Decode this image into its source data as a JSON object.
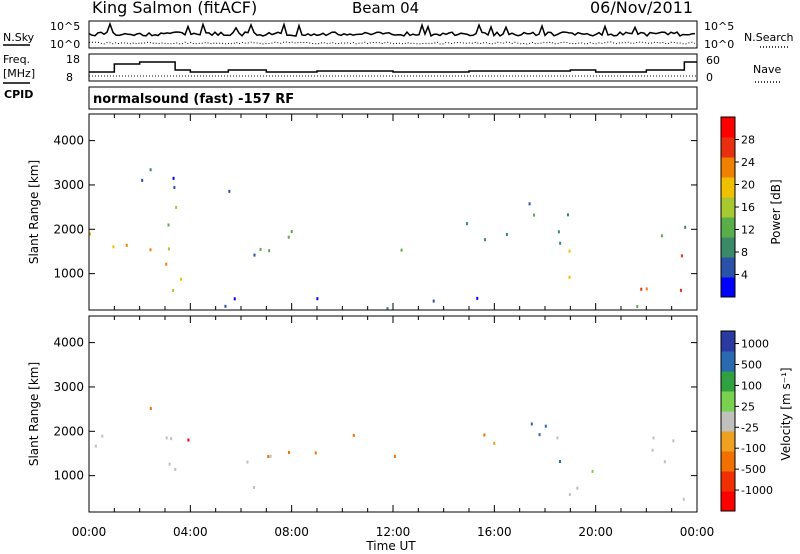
{
  "header": {
    "station": "King Salmon (fitACF)",
    "beam": "Beam 04",
    "date": "06/Nov/2011"
  },
  "noise_panel": {
    "left_label": "N.Sky",
    "right_label": "N.Search",
    "left_ticks": [
      "10^5",
      "10^0"
    ],
    "right_ticks": [
      "10^5",
      "10^0"
    ]
  },
  "freq_panel": {
    "left_label_line1": "Freq.",
    "left_label_line2": "[MHz]",
    "right_label": "Nave",
    "left_ticks": [
      "18",
      "8"
    ],
    "right_ticks": [
      "60",
      "0"
    ],
    "cpid_label": "CPID"
  },
  "cpid_text": "normalsound (fast) -157 RF",
  "colors": {
    "power_scale": [
      "#0000ff",
      "#2a52a8",
      "#3a8a6a",
      "#5aae4a",
      "#a8c830",
      "#f0c000",
      "#f08000",
      "#e83010",
      "#ff0000"
    ],
    "velocity_scale": [
      "#2a3aa0",
      "#2a6ab0",
      "#30a040",
      "#7ad050",
      "#c0c0bc",
      "#f0a020",
      "#f07000",
      "#f03000",
      "#ff0000"
    ]
  },
  "chart_data": [
    {
      "type": "heatmap",
      "title": "",
      "xlabel": "Time UT",
      "ylabel": "Slant Range [km]",
      "x_ticks": [
        "00:00",
        "04:00",
        "08:00",
        "12:00",
        "16:00",
        "20:00",
        "00:00"
      ],
      "xlim_hours": [
        0,
        24
      ],
      "ylim": [
        180,
        4600
      ],
      "y_ticks": [
        1000,
        2000,
        3000,
        4000
      ],
      "colorbar": {
        "label": "Power [dB]",
        "ticks": [
          4,
          8,
          12,
          16,
          20,
          24,
          28
        ],
        "range": [
          0,
          32
        ]
      },
      "echo_regions": [
        {
          "t0": 0.0,
          "t1": 4.4,
          "r0": 500,
          "r1": 2000,
          "level": 20
        },
        {
          "t0": 1.0,
          "t1": 3.6,
          "r0": 2000,
          "r1": 2700,
          "level": 14
        },
        {
          "t0": 4.5,
          "t1": 10.5,
          "r0": 1300,
          "r1": 2000,
          "level": 8
        },
        {
          "t0": 3.2,
          "t1": 4.6,
          "r0": 500,
          "r1": 900,
          "level": 14
        },
        {
          "t0": 0.5,
          "t1": 6.0,
          "r0": 2800,
          "r1": 3600,
          "level": 6
        },
        {
          "t0": 11.7,
          "t1": 13.5,
          "r0": 1200,
          "r1": 1800,
          "level": 10
        },
        {
          "t0": 14.3,
          "t1": 16.8,
          "r0": 1300,
          "r1": 2200,
          "level": 8
        },
        {
          "t0": 16.8,
          "t1": 19.0,
          "r0": 1800,
          "r1": 3100,
          "level": 8
        },
        {
          "t0": 18.5,
          "t1": 24.0,
          "r0": 500,
          "r1": 1500,
          "level": 22
        },
        {
          "t0": 18.5,
          "t1": 24.0,
          "r0": 1500,
          "r1": 2200,
          "level": 12
        },
        {
          "t0": 0.0,
          "t1": 24.0,
          "r0": 200,
          "r1": 450,
          "level": 6
        }
      ]
    },
    {
      "type": "heatmap",
      "title": "",
      "xlabel": "Time UT",
      "ylabel": "Slant Range [km]",
      "x_ticks": [
        "00:00",
        "04:00",
        "08:00",
        "12:00",
        "16:00",
        "20:00",
        "00:00"
      ],
      "xlim_hours": [
        0,
        24
      ],
      "ylim": [
        180,
        4600
      ],
      "y_ticks": [
        1000,
        2000,
        3000,
        4000
      ],
      "colorbar": {
        "label": "Velocity [m s⁻¹]",
        "ticks": [
          "1000",
          "500",
          "100",
          "25",
          "-25",
          "-100",
          "-500",
          "-1000"
        ]
      },
      "echo_regions": [
        {
          "t0": 0.0,
          "t1": 4.4,
          "r0": 500,
          "r1": 2000,
          "velocity": "ground scatter (gray)"
        },
        {
          "t0": 2.0,
          "t1": 3.7,
          "r0": 2300,
          "r1": 2800,
          "velocity": -300
        },
        {
          "t0": 4.5,
          "t1": 10.5,
          "r0": 1300,
          "r1": 1900,
          "velocity": -200
        },
        {
          "t0": 4.6,
          "t1": 7.5,
          "r0": 600,
          "r1": 1500,
          "velocity": "ground scatter (gray)"
        },
        {
          "t0": 11.7,
          "t1": 13.5,
          "r0": 1200,
          "r1": 1700,
          "velocity": -150
        },
        {
          "t0": 14.3,
          "t1": 16.8,
          "r0": 1300,
          "r1": 2100,
          "velocity": -120
        },
        {
          "t0": 16.8,
          "t1": 19.0,
          "r0": 1800,
          "r1": 3300,
          "velocity": 60
        },
        {
          "t0": 18.5,
          "t1": 24.0,
          "r0": 400,
          "r1": 1900,
          "velocity": "ground scatter (gray)"
        }
      ]
    }
  ]
}
